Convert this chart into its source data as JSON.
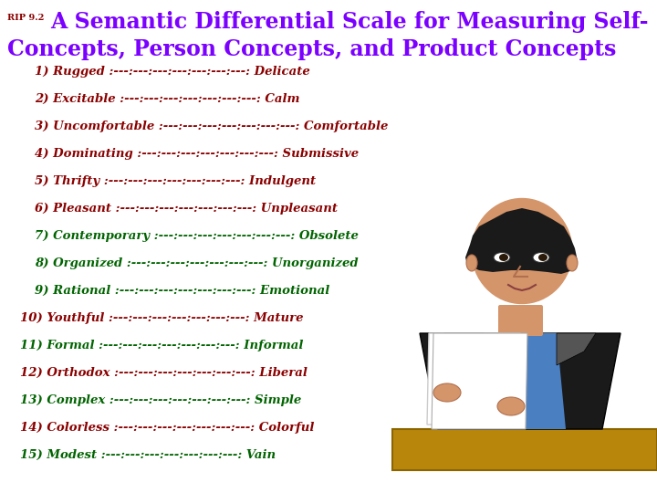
{
  "rip_label": "RIP 9.2",
  "title_line1": "A Semantic Differential Scale for Measuring Self-",
  "title_line2": "Concepts, Person Concepts, and Product Concepts",
  "title_color": "#7B00FF",
  "rip_color": "#8B0000",
  "items_color_dark": "#8B0000",
  "items_color_green": "#006400",
  "scale_str": ":---:---:---:---:---:---:---:",
  "items": [
    {
      "num": "1)",
      "left": "Rugged",
      "right": "Delicate",
      "color": "#8B0000"
    },
    {
      "num": "2)",
      "left": "Excitable",
      "right": "Calm",
      "color": "#8B0000"
    },
    {
      "num": "3)",
      "left": "Uncomfortable",
      "right": "Comfortable",
      "color": "#8B0000"
    },
    {
      "num": "4)",
      "left": "Dominating",
      "right": "Submissive",
      "color": "#8B0000"
    },
    {
      "num": "5)",
      "left": "Thrifty",
      "right": "Indulgent",
      "color": "#8B0000"
    },
    {
      "num": "6)",
      "left": "Pleasant",
      "right": "Unpleasant",
      "color": "#8B0000"
    },
    {
      "num": "7)",
      "left": "Contemporary",
      "right": "Obsolete",
      "color": "#006400"
    },
    {
      "num": "8)",
      "left": "Organized",
      "right": "Unorganized",
      "color": "#006400"
    },
    {
      "num": "9)",
      "left": "Rational",
      "right": "Emotional",
      "color": "#006400"
    },
    {
      "num": "10)",
      "left": "Youthful",
      "right": "Mature",
      "color": "#8B0000"
    },
    {
      "num": "11)",
      "left": "Formal",
      "right": "Informal",
      "color": "#006400"
    },
    {
      "num": "12)",
      "left": "Orthodox",
      "right": "Liberal",
      "color": "#8B0000"
    },
    {
      "num": "13)",
      "left": "Complex",
      "right": "Simple",
      "color": "#006400"
    },
    {
      "num": "14)",
      "left": "Colorless",
      "right": "Colorful",
      "color": "#8B0000"
    },
    {
      "num": "15)",
      "left": "Modest",
      "right": "Vain",
      "color": "#006400"
    }
  ],
  "bg_color": "#FFFFFF",
  "fig_width": 7.2,
  "fig_height": 5.4,
  "skin_color": "#D4956A",
  "hair_color": "#1a1a1a",
  "suit_color": "#1a1a1a",
  "lapel_color": "#555555",
  "shirt_color": "#4a7fc1",
  "desk_color": "#B8860B",
  "paper_color": "#F5F5F5"
}
